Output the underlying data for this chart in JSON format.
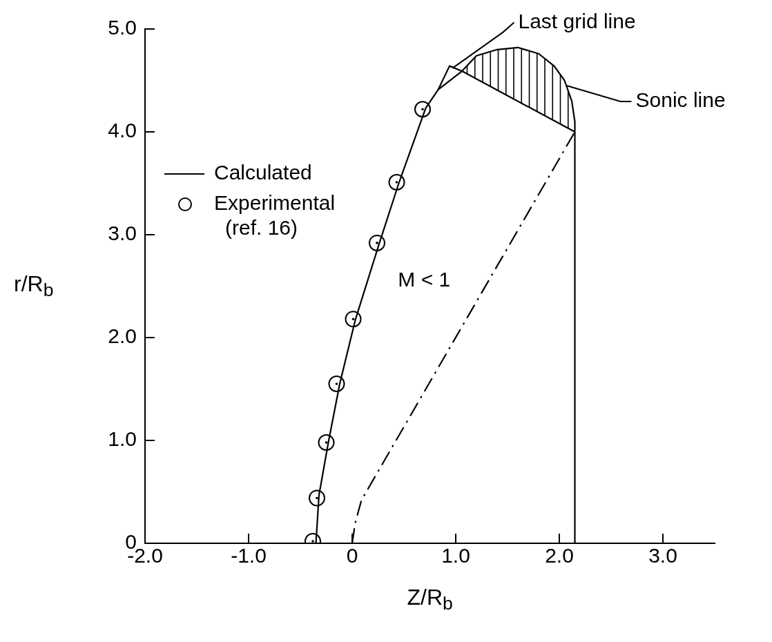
{
  "chart_data": {
    "type": "line",
    "xlabel": "Z/R$_{b}$",
    "ylabel": "r/R$_{b}$",
    "xlim": [
      -2,
      3.5
    ],
    "ylim": [
      0,
      5
    ],
    "xticks": [
      {
        "value": -2,
        "label": "-2.0"
      },
      {
        "value": -1,
        "label": "-1.0"
      },
      0,
      {
        "value": 1,
        "label": "1.0"
      },
      {
        "value": 2,
        "label": "2.0"
      },
      {
        "value": 3,
        "label": "3.0"
      }
    ],
    "yticks": [
      0,
      {
        "value": 1,
        "label": "1.0"
      },
      {
        "value": 2,
        "label": "2.0"
      },
      {
        "value": 3,
        "label": "3.0"
      },
      {
        "value": 4,
        "label": "4.0"
      },
      {
        "value": 5,
        "label": "5.0"
      }
    ],
    "legend": "left",
    "series": [
      {
        "name": "Calculated",
        "color": "#000000",
        "x": [
          -0.35,
          -0.32,
          -0.23,
          -0.12,
          0.03,
          0.26,
          0.45,
          0.71,
          0.83
        ],
        "values": [
          0,
          0.47,
          0.98,
          1.55,
          2.17,
          2.91,
          3.5,
          4.23,
          4.41
        ]
      },
      {
        "name": "Experimental (ref. 16)",
        "type": "scatter",
        "marker": "circle",
        "color": "#000000",
        "x": [
          -0.38,
          -0.34,
          -0.25,
          -0.15,
          0.01,
          0.24,
          0.43,
          0.68
        ],
        "values": [
          0.02,
          0.44,
          0.98,
          1.55,
          2.18,
          2.92,
          3.51,
          4.22
        ]
      },
      {
        "color": "#000000",
        "x": [
          2.15,
          2.15,
          1.06,
          0.83,
          0.94,
          1.06,
          1.2,
          1.4,
          1.6,
          1.8,
          1.95,
          2.05,
          2.12,
          2.15,
          2.15
        ],
        "values": [
          0,
          4.0,
          4.59,
          4.41,
          4.64,
          4.59,
          4.74,
          4.8,
          4.82,
          4.76,
          4.64,
          4.5,
          4.3,
          4.1,
          4.0
        ]
      },
      {
        "line_style": "dashed",
        "color": "#000000",
        "x": [
          0,
          0.03,
          0.09,
          0.32,
          2.15
        ],
        "values": [
          0,
          0.2,
          0.42,
          0.82,
          4.0
        ]
      }
    ],
    "annotations": [
      {
        "text": "Last grid line",
        "x": 0.97,
        "y": 4.62
      },
      {
        "text": "Sonic line",
        "x": 2.07,
        "y": 4.45
      },
      "M < 1"
    ]
  }
}
